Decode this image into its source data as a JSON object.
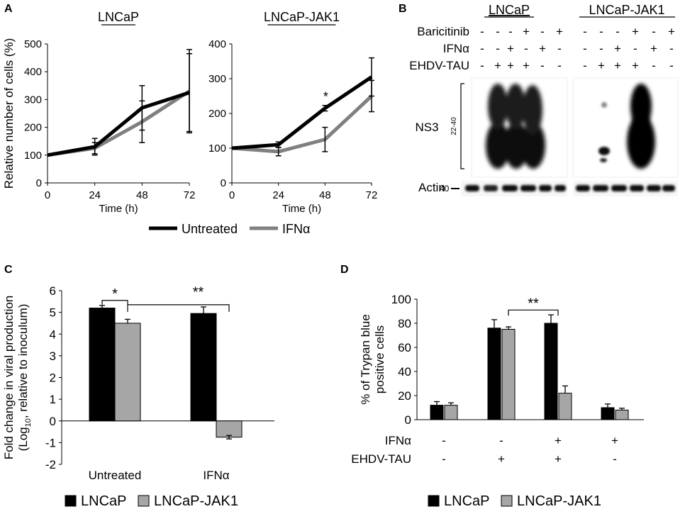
{
  "panels": {
    "A": {
      "letter": "A"
    },
    "B": {
      "letter": "B"
    },
    "C": {
      "letter": "C"
    },
    "D": {
      "letter": "D"
    }
  },
  "chart_data": [
    {
      "id": "A1",
      "type": "line",
      "title": "LNCaP",
      "xlabel": "Time (h)",
      "ylabel": "Relative number of cells (%)",
      "x": [
        0,
        24,
        48,
        72
      ],
      "xticks": [
        "0",
        "24",
        "48",
        "72"
      ],
      "ylim": [
        0,
        500
      ],
      "yticks": [
        "0",
        "100",
        "200",
        "300",
        "400",
        "500"
      ],
      "series": [
        {
          "name": "Untreated",
          "color": "#000000",
          "values": [
            100,
            130,
            270,
            325
          ],
          "err": [
            0,
            30,
            80,
            140
          ]
        },
        {
          "name": "IFNα",
          "color": "#808080",
          "values": [
            100,
            125,
            220,
            330
          ],
          "err": [
            0,
            20,
            75,
            150
          ]
        }
      ]
    },
    {
      "id": "A2",
      "type": "line",
      "title": "LNCaP-JAK1",
      "xlabel": "Time (h)",
      "ylabel": "",
      "x": [
        0,
        24,
        48,
        72
      ],
      "xticks": [
        "0",
        "24",
        "48",
        "72"
      ],
      "ylim": [
        0,
        400
      ],
      "yticks": [
        "0",
        "100",
        "200",
        "300",
        "400"
      ],
      "annotation": {
        "text": "*",
        "x": 48
      },
      "series": [
        {
          "name": "Untreated",
          "color": "#000000",
          "values": [
            100,
            110,
            215,
            305
          ],
          "err": [
            0,
            8,
            8,
            55
          ]
        },
        {
          "name": "IFNα",
          "color": "#808080",
          "values": [
            100,
            90,
            125,
            250
          ],
          "err": [
            0,
            12,
            35,
            45
          ]
        }
      ]
    },
    {
      "id": "C",
      "type": "bar",
      "ylabel_line1": "Fold change in viral production",
      "ylabel_line2_pre": "(Log",
      "ylabel_line2_sub": "10",
      "ylabel_line2_post": ", relative to inoculum)",
      "categories": [
        "Untreated",
        "IFNα"
      ],
      "ylim": [
        -2,
        6
      ],
      "yticks": [
        "-2",
        "-1",
        "0",
        "1",
        "2",
        "3",
        "4",
        "5",
        "6"
      ],
      "series": [
        {
          "name": "LNCaP",
          "color": "#000000",
          "values": [
            5.2,
            4.95
          ],
          "err": [
            0.12,
            0.3
          ]
        },
        {
          "name": "LNCaP-JAK1",
          "color": "#a6a6a6",
          "values": [
            4.5,
            -0.75
          ],
          "err": [
            0.18,
            0.08
          ]
        }
      ],
      "significance": [
        {
          "text": "*"
        },
        {
          "text": "**"
        }
      ],
      "legend": [
        "LNCaP",
        "LNCaP-JAK1"
      ]
    },
    {
      "id": "D",
      "type": "bar",
      "ylabel_line1": "% of Trypan blue",
      "ylabel_line2": "positive cells",
      "groups": 4,
      "ylim": [
        0,
        100
      ],
      "yticks": [
        "0",
        "20",
        "40",
        "60",
        "80",
        "100"
      ],
      "series": [
        {
          "name": "LNCaP",
          "color": "#000000",
          "values": [
            12,
            76,
            80,
            10
          ],
          "err": [
            3,
            7,
            7,
            3
          ]
        },
        {
          "name": "LNCaP-JAK1",
          "color": "#a6a6a6",
          "values": [
            12,
            75,
            22,
            8
          ],
          "err": [
            2,
            2,
            6,
            1.5
          ]
        }
      ],
      "significance": [
        {
          "text": "**"
        }
      ],
      "conditions": [
        {
          "label": "IFNα",
          "values": [
            "-",
            "-",
            "+",
            "+"
          ]
        },
        {
          "label": "EHDV-TAU",
          "values": [
            "-",
            "+",
            "+",
            "-"
          ]
        }
      ],
      "legend": [
        "LNCaP",
        "LNCaP-JAK1"
      ]
    }
  ],
  "legendA": {
    "untreated": "Untreated",
    "ifn": "IFNα"
  },
  "blot": {
    "headers": [
      "LNCaP",
      "LNCaP-JAK1"
    ],
    "conditions": [
      {
        "label": "Baricitinib",
        "left": [
          "-",
          "-",
          "-",
          "+",
          "-",
          "+"
        ],
        "right": [
          "-",
          "-",
          "-",
          "+",
          "-",
          "+"
        ]
      },
      {
        "label": "IFNα",
        "left": [
          "-",
          "-",
          "+",
          "-",
          "+",
          "-"
        ],
        "right": [
          "-",
          "-",
          "+",
          "-",
          "+",
          "-"
        ]
      },
      {
        "label": "EHDV-TAU",
        "left": [
          "-",
          "+",
          "+",
          "+",
          "-",
          "-"
        ],
        "right": [
          "-",
          "+",
          "+",
          "+",
          "-",
          "-"
        ]
      }
    ],
    "ns3_label": "NS3",
    "ns3_marker": "22-40",
    "actin_label": "Actin",
    "actin_marker": "40"
  }
}
